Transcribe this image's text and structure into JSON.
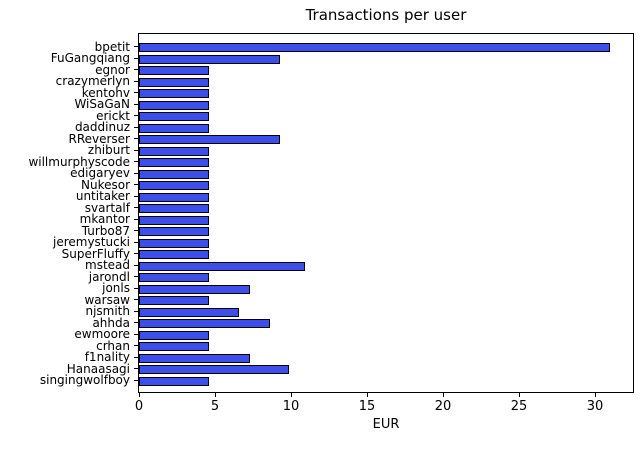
{
  "chart_data": {
    "type": "bar",
    "orientation": "horizontal",
    "title": "Transactions per user",
    "xlabel": "EUR",
    "ylabel": "",
    "categories": [
      "bpetit",
      "FuGangqiang",
      "egnor",
      "crazymerlyn",
      "kentohv",
      "WiSaGaN",
      "erickt",
      "daddinuz",
      "RReverser",
      "zhiburt",
      "willmurphyscode",
      "edigaryev",
      "Nukesor",
      "untitaker",
      "svartalf",
      "mkantor",
      "Turbo87",
      "jeremystucki",
      "SuperFluffy",
      "mstead",
      "jarondl",
      "jonls",
      "warsaw",
      "njsmith",
      "ahhda",
      "ewmoore",
      "crhan",
      "f1nality",
      "Hanaasagi",
      "singingwolfboy"
    ],
    "values": [
      31.0,
      9.3,
      4.6,
      4.6,
      4.6,
      4.6,
      4.6,
      4.6,
      9.3,
      4.6,
      4.6,
      4.6,
      4.6,
      4.6,
      4.6,
      4.6,
      4.6,
      4.6,
      4.6,
      10.9,
      4.6,
      7.3,
      4.6,
      6.6,
      8.6,
      4.6,
      4.6,
      7.3,
      9.9,
      4.6
    ],
    "xlim": [
      0,
      32.5
    ],
    "xticks": [
      0,
      5,
      10,
      15,
      20,
      25,
      30
    ],
    "bar_color": "#3D4FEB",
    "bar_edge_color": "#000000",
    "background_color": "#FFFFFF",
    "grid": false,
    "legend": null
  }
}
